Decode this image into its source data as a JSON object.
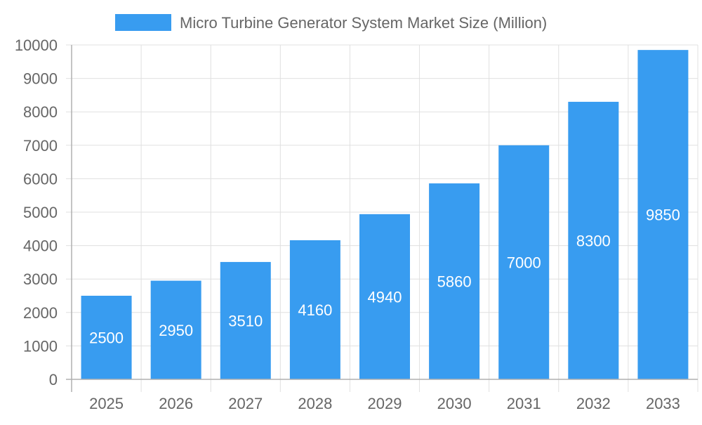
{
  "chart_data": {
    "type": "bar",
    "title": "",
    "xlabel": "",
    "ylabel": "",
    "categories": [
      "2025",
      "2026",
      "2027",
      "2028",
      "2029",
      "2030",
      "2031",
      "2032",
      "2033"
    ],
    "series": [
      {
        "name": "Micro Turbine Generator System Market Size (Million)",
        "values": [
          2500,
          2950,
          3510,
          4160,
          4940,
          5860,
          7000,
          8300,
          9850
        ]
      }
    ],
    "ylim": [
      0,
      10000
    ],
    "yticks": [
      0,
      1000,
      2000,
      3000,
      4000,
      5000,
      6000,
      7000,
      8000,
      9000,
      10000
    ],
    "grid": true,
    "legend": "top-center",
    "data_labels": true,
    "colors": {
      "bar": "#389cf0",
      "label": "#ffffff",
      "grid": "#e0e0e0",
      "axis": "#b0b0b0",
      "tick_text": "#666666"
    }
  }
}
